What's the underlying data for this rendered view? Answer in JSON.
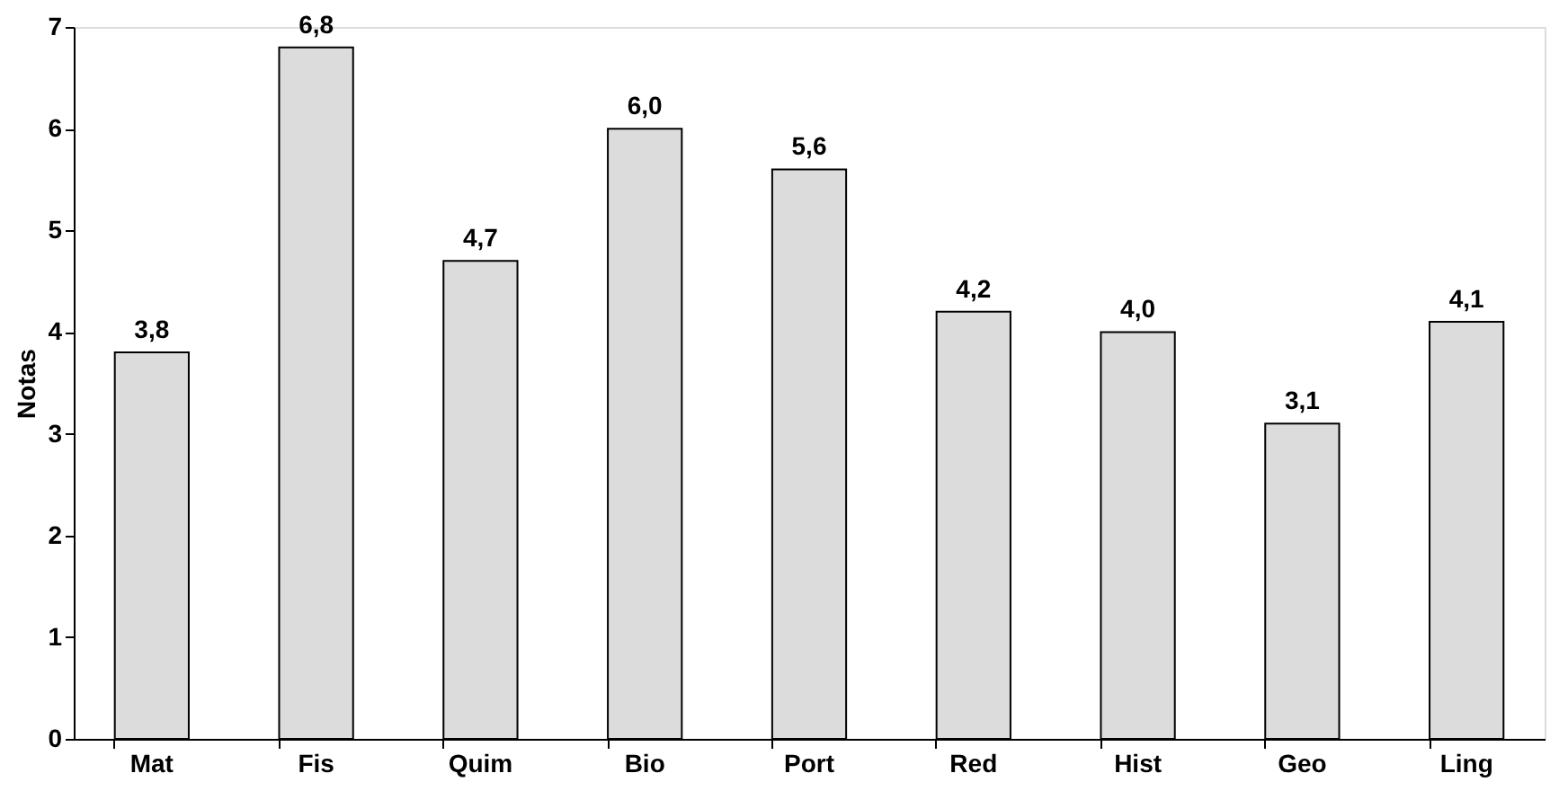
{
  "chart_data": {
    "type": "bar",
    "ylabel": "Notas",
    "categories": [
      "Mat",
      "Fis",
      "Quim",
      "Bio",
      "Port",
      "Red",
      "Hist",
      "Geo",
      "Ling"
    ],
    "values": [
      3.8,
      6.8,
      4.7,
      6.0,
      5.6,
      4.2,
      4.0,
      3.1,
      4.1
    ],
    "value_labels": [
      "3,8",
      "6,8",
      "4,7",
      "6,0",
      "5,6",
      "4,2",
      "4,0",
      "3,1",
      "4,1"
    ],
    "color": "#dcdcdc",
    "ylim": [
      0,
      7
    ],
    "yticks": [
      0,
      1,
      2,
      3,
      4,
      5,
      6,
      7
    ],
    "grid": false
  }
}
